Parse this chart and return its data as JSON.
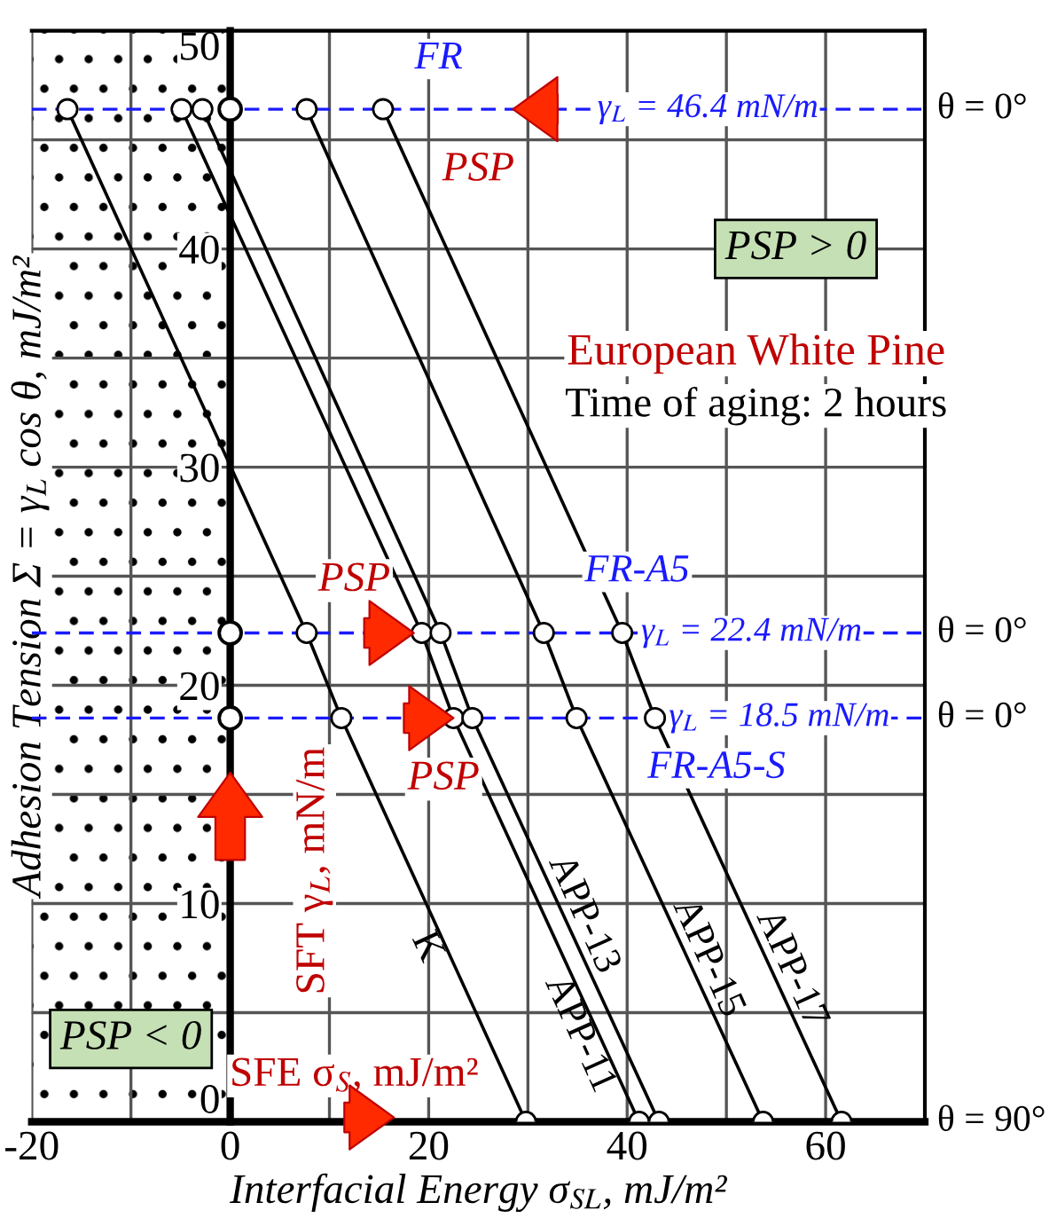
{
  "chart_data": {
    "type": "line",
    "xlabel": "Interfacial Energy σ$_{SL}$, mJ/m²",
    "ylabel": "Adhesion Tension Σ = γ$_{L}$ cos θ, mJ/m²",
    "xlim": [
      -20,
      70
    ],
    "ylim": [
      0,
      50
    ],
    "xticks": [
      -20,
      {
        "value": -10,
        "label": null
      },
      0,
      {
        "value": 10,
        "label": null
      },
      20,
      {
        "value": 30,
        "label": null
      },
      40,
      {
        "value": 50,
        "label": null
      },
      60,
      {
        "value": 70,
        "label": null
      }
    ],
    "yticks": [
      0,
      {
        "value": 5,
        "label": null
      },
      10,
      {
        "value": 15,
        "label": null
      },
      20,
      {
        "value": 25,
        "label": null
      },
      30,
      {
        "value": 35,
        "label": null
      },
      40,
      {
        "value": 45,
        "label": null
      },
      50
    ],
    "grid": true,
    "legend": false,
    "marker": "circle",
    "line_style": "solid",
    "series": [
      {
        "name": "K",
        "color": "#000000",
        "x": [
          -16.4,
          7.7,
          11.2,
          29.8
        ],
        "values": [
          46.4,
          22.4,
          18.5,
          0
        ]
      },
      {
        "name": "APP-11",
        "color": "#000000",
        "x": [
          -4.9,
          19.3,
          22.5,
          41.2
        ],
        "values": [
          46.4,
          22.4,
          18.5,
          0
        ]
      },
      {
        "name": "APP-13",
        "color": "#000000",
        "x": [
          -2.8,
          21.2,
          24.4,
          43.2
        ],
        "values": [
          46.4,
          22.4,
          18.5,
          0
        ]
      },
      {
        "name": "APP-15",
        "color": "#000000",
        "x": [
          7.7,
          31.6,
          34.9,
          53.7
        ],
        "values": [
          46.4,
          22.4,
          18.5,
          0
        ]
      },
      {
        "name": "APP-17",
        "color": "#000000",
        "x": [
          15.4,
          39.5,
          42.8,
          61.6
        ],
        "values": [
          46.4,
          22.4,
          18.5,
          0
        ]
      },
      {
        "type": "scatter",
        "color": "#000000",
        "x": [
          0,
          0,
          0
        ],
        "values": [
          46.4,
          22.4,
          18.5
        ]
      }
    ],
    "ref_lines": [
      {
        "axis": "y",
        "value": 46.4,
        "label": "γ$_{L}$ = 46.4 mN/m",
        "color": "#1a1aff",
        "line_style": "dashed"
      },
      {
        "axis": "y",
        "value": 22.4,
        "label": "γ$_{L}$ = 22.4 mN/m",
        "color": "#1a1aff",
        "line_style": "dashed"
      },
      {
        "axis": "y",
        "value": 18.5,
        "label": "γ$_{L}$ = 18.5 mN/m",
        "color": "#1a1aff",
        "line_style": "dashed"
      }
    ],
    "bands": [
      {
        "axis": "x",
        "from": -20,
        "to": 0,
        "label": "PSP < 0"
      }
    ],
    "annotations": [
      {
        "text": "θ = 0°",
        "x": 70,
        "y": 46.4
      },
      {
        "text": "θ = 0°",
        "x": 70,
        "y": 22.4
      },
      {
        "text": "θ = 0°",
        "x": 70,
        "y": 18.5
      },
      "θ = 90°",
      {
        "text": "FR",
        "x": 21,
        "y": 48.7
      },
      "FR-A5",
      "FR-A5-S",
      {
        "text": "PSP",
        "x": 25,
        "y": 43.6
      },
      {
        "text": "PSP",
        "x": 12.5,
        "y": 24.8
      },
      {
        "text": "PSP",
        "x": 21.5,
        "y": 15.7
      },
      "PSP > 0",
      "European White Pine",
      "Time of aging: 2 hours",
      "SFT γ$_{L}$, mN/m",
      "SFE σ$_{S}$, mJ/m²"
    ]
  }
}
